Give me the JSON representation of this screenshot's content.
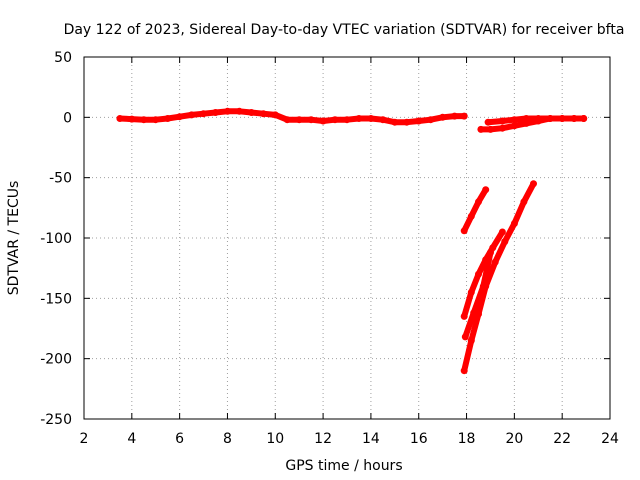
{
  "chart_data": {
    "type": "scatter",
    "title": "Day 122 of 2023, Sidereal Day-to-day VTEC variation (SDTVAR) for receiver bfta",
    "xlabel": "GPS time / hours",
    "ylabel": "SDTVAR / TECUs",
    "xlim": [
      2,
      24
    ],
    "ylim": [
      -250,
      50
    ],
    "x_ticks": [
      2,
      4,
      6,
      8,
      10,
      12,
      14,
      16,
      18,
      20,
      22,
      24
    ],
    "y_ticks": [
      -250,
      -200,
      -150,
      -100,
      -50,
      0,
      50
    ],
    "x_tick_labels": [
      "2",
      "4",
      "6",
      "8",
      "10",
      "12",
      "14",
      "16",
      "18",
      "20",
      "22",
      "24"
    ],
    "y_tick_labels": [
      "-250",
      "-200",
      "-150",
      "-100",
      "-50",
      "0",
      "50"
    ],
    "grid": true,
    "legend": "none",
    "series_color": "#ff0000",
    "series": [
      {
        "x": [
          3.5,
          4.0,
          4.5,
          5.0,
          5.5,
          6.0,
          6.5,
          7.0,
          7.5,
          8.0,
          8.5,
          9.0,
          9.5,
          10.0,
          10.5,
          11.0,
          11.5,
          12.0,
          12.5,
          13.0,
          13.5,
          14.0,
          14.5,
          15.0,
          15.5,
          16.0,
          16.5,
          17.0,
          17.5,
          17.9
        ],
        "y": [
          -1,
          -1.5,
          -2,
          -2,
          -1,
          0.5,
          2,
          3,
          4,
          5,
          5,
          4,
          3,
          2,
          -2,
          -2,
          -2,
          -3,
          -2,
          -2,
          -1,
          -1,
          -2,
          -4,
          -4,
          -3,
          -2,
          0,
          1,
          1
        ]
      },
      {
        "x": [
          18.6,
          19.0,
          19.5,
          20.0,
          20.5,
          21.0,
          21.5,
          22.0,
          22.5,
          22.9
        ],
        "y": [
          -10,
          -10,
          -9,
          -7,
          -5,
          -3,
          -1,
          -1,
          -1,
          -1
        ]
      },
      {
        "x": [
          18.9,
          19.5,
          20.0,
          20.5,
          21.0,
          21.5,
          22.0,
          22.5,
          22.9
        ],
        "y": [
          -4,
          -3,
          -2,
          -1,
          -1,
          -1,
          -1,
          -1,
          -1
        ]
      },
      {
        "x": [
          17.9,
          18.2,
          18.5,
          18.8
        ],
        "y": [
          -94,
          -82,
          -70,
          -60
        ]
      },
      {
        "x": [
          17.9,
          18.2,
          18.5,
          18.8,
          19.1,
          19.5
        ],
        "y": [
          -165,
          -145,
          -130,
          -118,
          -108,
          -95
        ]
      },
      {
        "x": [
          17.9,
          18.2,
          18.5,
          18.8,
          19.2,
          19.6,
          20.0,
          20.4,
          20.8
        ],
        "y": [
          -210,
          -185,
          -163,
          -140,
          -120,
          -103,
          -88,
          -70,
          -55
        ]
      },
      {
        "x": [
          17.95,
          18.3,
          18.7,
          19.0
        ],
        "y": [
          -182,
          -162,
          -140,
          -112
        ]
      }
    ]
  }
}
